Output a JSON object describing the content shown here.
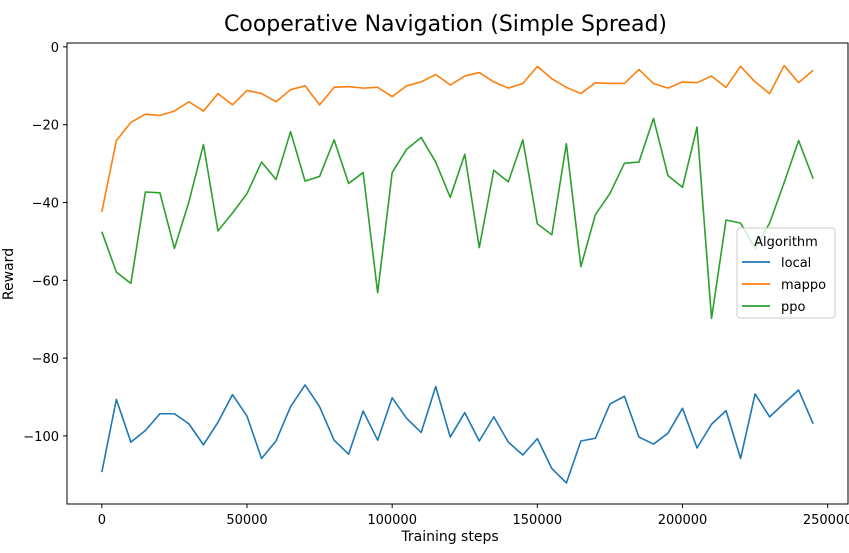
{
  "chart_data": {
    "type": "line",
    "title": "Cooperative Navigation (Simple Spread)",
    "xlabel": "Training steps",
    "ylabel": "Reward",
    "xlim": [
      -12000,
      257000
    ],
    "ylim": [
      -117.5,
      1.0
    ],
    "xticks": [
      0,
      50000,
      100000,
      150000,
      200000,
      250000
    ],
    "xtick_labels": [
      "0",
      "50000",
      "100000",
      "150000",
      "200000",
      "250000"
    ],
    "yticks": [
      0,
      -20,
      -40,
      -60,
      -80,
      -100
    ],
    "ytick_labels": [
      "0",
      "−20",
      "−40",
      "−60",
      "−80",
      "−100"
    ],
    "grid": false,
    "legend": {
      "title": "Algorithm",
      "placement": "center-right"
    },
    "x": [
      0,
      5000,
      10000,
      15000,
      20000,
      25000,
      30000,
      35000,
      40000,
      45000,
      50000,
      55000,
      60000,
      65000,
      70000,
      75000,
      80000,
      85000,
      90000,
      95000,
      100000,
      105000,
      110000,
      115000,
      120000,
      125000,
      130000,
      135000,
      140000,
      145000,
      150000,
      155000,
      160000,
      165000,
      170000,
      175000,
      180000,
      185000,
      190000,
      195000,
      200000,
      205000,
      210000,
      215000,
      220000,
      225000,
      230000,
      235000,
      240000,
      245000
    ],
    "series": [
      {
        "name": "local",
        "color": "#1f77b4",
        "values": [
          -109.3,
          -90.6,
          -101.6,
          -98.6,
          -94.3,
          -94.3,
          -96.9,
          -102.3,
          -96.5,
          -89.4,
          -94.9,
          -105.8,
          -101.3,
          -92.5,
          -86.9,
          -92.5,
          -101.1,
          -104.7,
          -93.6,
          -101.1,
          -90.2,
          -95.5,
          -99.1,
          -87.3,
          -100.3,
          -94.0,
          -101.3,
          -95.1,
          -101.6,
          -104.9,
          -100.7,
          -108.4,
          -112.1,
          -101.3,
          -100.6,
          -91.8,
          -89.8,
          -100.3,
          -102.1,
          -99.3,
          -92.9,
          -103.1,
          -97.0,
          -93.5,
          -105.8,
          -89.2,
          -95.1,
          -91.6,
          -88.2,
          -96.9
        ]
      },
      {
        "name": "mappo",
        "color": "#ff7f0e",
        "values": [
          -42.4,
          -24.1,
          -19.4,
          -17.3,
          -17.6,
          -16.5,
          -14.1,
          -16.5,
          -12.0,
          -14.9,
          -11.2,
          -12.0,
          -14.1,
          -11.0,
          -10.0,
          -14.9,
          -10.4,
          -10.2,
          -10.6,
          -10.4,
          -12.8,
          -10.0,
          -9.0,
          -7.1,
          -9.8,
          -7.5,
          -6.6,
          -9.0,
          -10.6,
          -9.4,
          -5.0,
          -8.2,
          -10.4,
          -12.0,
          -9.2,
          -9.4,
          -9.4,
          -5.8,
          -9.4,
          -10.6,
          -9.0,
          -9.2,
          -7.5,
          -10.4,
          -5.0,
          -9.0,
          -12.0,
          -4.8,
          -9.2,
          -6.0
        ]
      },
      {
        "name": "ppo",
        "color": "#2ca02c",
        "values": [
          -47.5,
          -57.9,
          -60.8,
          -37.3,
          -37.5,
          -51.8,
          -39.8,
          -25.1,
          -47.3,
          -42.7,
          -37.7,
          -29.6,
          -34.1,
          -21.8,
          -34.5,
          -33.3,
          -23.9,
          -35.1,
          -32.3,
          -63.2,
          -32.3,
          -26.3,
          -23.3,
          -29.6,
          -38.7,
          -27.6,
          -51.6,
          -31.7,
          -34.7,
          -23.9,
          -45.5,
          -48.3,
          -24.9,
          -56.5,
          -43.1,
          -37.7,
          -29.9,
          -29.6,
          -18.4,
          -33.1,
          -36.1,
          -20.6,
          -69.8,
          -44.5,
          -45.3,
          -51.8,
          -45.3,
          -34.9,
          -24.1,
          -33.9
        ]
      }
    ]
  }
}
